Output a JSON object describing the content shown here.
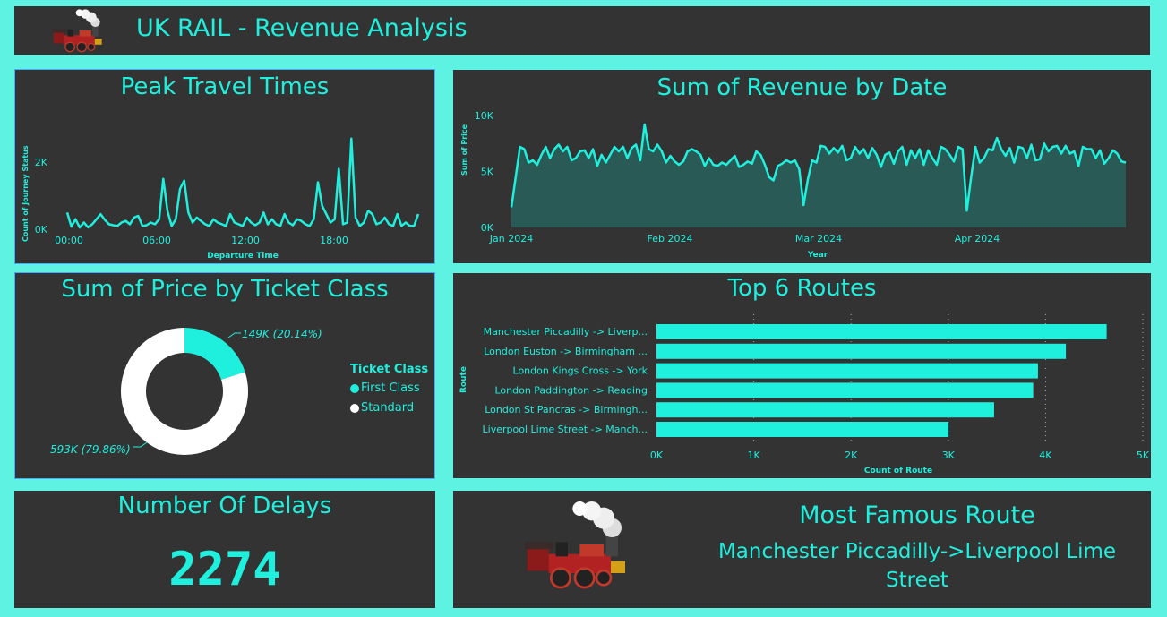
{
  "header": {
    "title": "UK RAIL - Revenue Analysis",
    "logo_icon": "steam-train-icon"
  },
  "colors": {
    "accent": "#1ff0de",
    "panel": "#333333",
    "page": "#5ef2e2",
    "standard": "#ffffff",
    "area_fill": "#2a5a55"
  },
  "peak": {
    "title": "Peak Travel Times",
    "chart_data": {
      "type": "line",
      "title": "Peak Travel Times",
      "xlabel": "Departure Time",
      "ylabel": "Count of Journey Status",
      "x_ticks": [
        "00:00",
        "06:00",
        "12:00",
        "18:00"
      ],
      "y_ticks": [
        "0K",
        "2K"
      ],
      "xlim": [
        0,
        23.5
      ],
      "ylim": [
        0,
        3200
      ],
      "values": [
        500,
        80,
        300,
        50,
        200,
        60,
        150,
        300,
        450,
        280,
        150,
        120,
        100,
        200,
        250,
        150,
        350,
        400,
        100,
        120,
        200,
        150,
        300,
        1500,
        550,
        100,
        300,
        1200,
        1450,
        500,
        200,
        350,
        250,
        150,
        100,
        300,
        200,
        150,
        100,
        450,
        200,
        150,
        100,
        350,
        200,
        120,
        200,
        500,
        150,
        300,
        150,
        100,
        450,
        200,
        120,
        300,
        250,
        150,
        100,
        300,
        1400,
        700,
        450,
        200,
        300,
        1800,
        150,
        200,
        2700,
        350,
        100,
        200,
        550,
        450,
        150,
        200,
        350,
        150,
        100,
        450,
        100,
        200,
        100,
        100,
        450
      ]
    }
  },
  "revenue": {
    "title": "Sum of Revenue by Date",
    "chart_data": {
      "type": "area",
      "title": "Sum of Revenue by Date",
      "xlabel": "Year",
      "ylabel": "Sum of Price",
      "x_ticks": [
        "Jan 2024",
        "Feb 2024",
        "Mar 2024",
        "Apr 2024"
      ],
      "y_ticks": [
        "0K",
        "5K",
        "10K"
      ],
      "ylim": [
        0,
        10000
      ],
      "values": [
        1800,
        4500,
        7200,
        7000,
        5800,
        6000,
        5600,
        6500,
        7200,
        6200,
        7000,
        7400,
        6800,
        7200,
        6000,
        6200,
        6800,
        6900,
        6200,
        7000,
        5500,
        6500,
        5800,
        6500,
        7200,
        6800,
        7200,
        6200,
        7100,
        7400,
        6000,
        9200,
        7000,
        6800,
        7400,
        6800,
        5800,
        6400,
        5900,
        5600,
        5900,
        6800,
        7000,
        6800,
        6500,
        5500,
        6200,
        5600,
        5500,
        5800,
        5600,
        6000,
        6400,
        5400,
        5600,
        5900,
        5700,
        6800,
        6500,
        5600,
        4500,
        4200,
        5500,
        5700,
        6000,
        5800,
        6000,
        5200,
        2000,
        4300,
        6000,
        5800,
        7300,
        7200,
        6600,
        7100,
        6700,
        7300,
        6000,
        6200,
        7200,
        6600,
        7000,
        6200,
        7100,
        6500,
        5400,
        6500,
        6700,
        5700,
        6800,
        7200,
        5600,
        6900,
        6200,
        7000,
        5600,
        6900,
        6200,
        5600,
        7200,
        7000,
        6500,
        5900,
        7200,
        7000,
        1500,
        4500,
        7200,
        5800,
        6200,
        7000,
        6900,
        8000,
        7000,
        6400,
        7100,
        5800,
        7200,
        7100,
        6200,
        7400,
        6000,
        6100,
        7500,
        6800,
        7200,
        7300,
        6600,
        7300,
        6600,
        6800,
        5500,
        7200,
        7000,
        7000,
        6200,
        6900,
        5700,
        6200,
        6900,
        6600,
        5900,
        5800
      ]
    }
  },
  "ticket": {
    "title": "Sum of Price by Ticket Class",
    "chart_data": {
      "type": "pie",
      "title": "Sum of Price by Ticket Class",
      "legend_title": "Ticket Class",
      "legend_position": "right",
      "slices": [
        {
          "name": "First Class",
          "value": 149,
          "percent": 20.14,
          "label": "149K (20.14%)",
          "color": "#1ff0de"
        },
        {
          "name": "Standard",
          "value": 593,
          "percent": 79.86,
          "label": "593K (79.86%)",
          "color": "#ffffff"
        }
      ]
    }
  },
  "routes": {
    "title": "Top 6 Routes",
    "chart_data": {
      "type": "bar",
      "orientation": "horizontal",
      "title": "Top 6 Routes",
      "xlabel": "Count of Route",
      "ylabel": "Route",
      "categories": [
        "Manchester Piccadilly -> Liverp...",
        "London Euston -> Birmingham ...",
        "London Kings Cross -> York",
        "London Paddington -> Reading",
        "London St Pancras -> Birmingh...",
        "Liverpool Lime Street -> Manch..."
      ],
      "values": [
        4628,
        4209,
        3922,
        3873,
        3471,
        3002
      ],
      "x_ticks": [
        "0K",
        "1K",
        "2K",
        "3K",
        "4K",
        "5K"
      ],
      "xlim": [
        0,
        5000
      ]
    }
  },
  "delays": {
    "title": "Number Of Delays",
    "value": "2274"
  },
  "famous": {
    "title": "Most Famous Route",
    "route": "Manchester Piccadilly->Liverpool Lime Street",
    "logo_icon": "steam-train-icon"
  }
}
